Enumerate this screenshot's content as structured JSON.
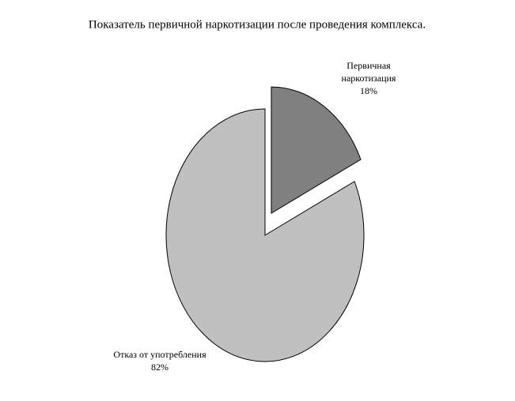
{
  "chart_data": {
    "type": "pie",
    "title": "Показатель первичной наркотизации после проведения комплекса.",
    "categories": [
      "Первичная наркотизация",
      "Отказ от употребления"
    ],
    "values": [
      18,
      82
    ],
    "value_labels": [
      "18%",
      "82%"
    ],
    "colors": [
      "#808080",
      "#c0c0c0"
    ],
    "explode": [
      true,
      false
    ]
  }
}
